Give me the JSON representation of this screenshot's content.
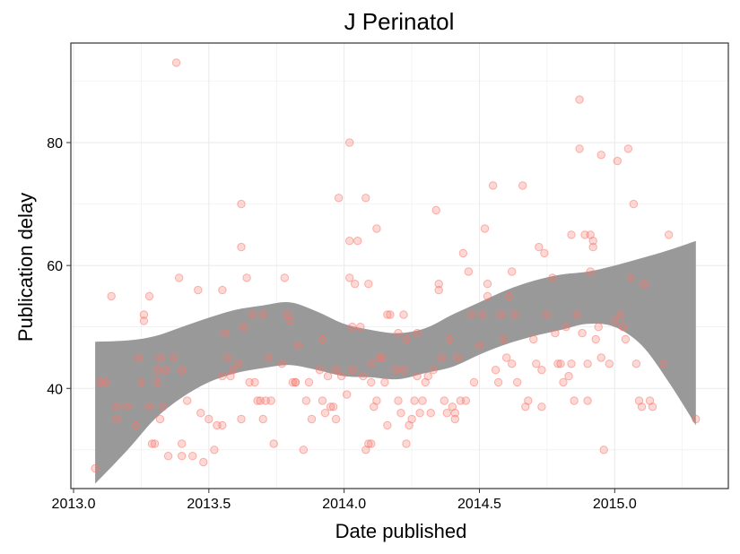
{
  "chart_data": {
    "type": "scatter",
    "title": "J Perinatol",
    "xlabel": "Date published",
    "ylabel": "Publication delay",
    "xlim": [
      2012.99,
      2015.42
    ],
    "ylim": [
      23.7,
      96.2
    ],
    "xticks": [
      2013.0,
      2013.5,
      2014.0,
      2014.5,
      2015.0
    ],
    "xtick_labels": [
      "2013.0",
      "2013.5",
      "2014.0",
      "2014.5",
      "2015.0"
    ],
    "yticks": [
      40,
      60,
      80
    ],
    "ytick_labels": [
      "40",
      "60",
      "80"
    ],
    "grid": true,
    "legend": "none",
    "point_color": "#f8766d",
    "band_color": "#999999",
    "points": [
      [
        2013.08,
        27
      ],
      [
        2013.1,
        41
      ],
      [
        2013.12,
        41
      ],
      [
        2013.14,
        55
      ],
      [
        2013.16,
        37
      ],
      [
        2013.16,
        35
      ],
      [
        2013.2,
        37
      ],
      [
        2013.23,
        34
      ],
      [
        2013.24,
        45
      ],
      [
        2013.25,
        41
      ],
      [
        2013.26,
        52
      ],
      [
        2013.26,
        51
      ],
      [
        2013.28,
        55
      ],
      [
        2013.28,
        37
      ],
      [
        2013.29,
        31
      ],
      [
        2013.3,
        31
      ],
      [
        2013.31,
        43
      ],
      [
        2013.31,
        41
      ],
      [
        2013.32,
        45
      ],
      [
        2013.32,
        35
      ],
      [
        2013.33,
        37
      ],
      [
        2013.34,
        43
      ],
      [
        2013.35,
        29
      ],
      [
        2013.37,
        45
      ],
      [
        2013.38,
        93
      ],
      [
        2013.39,
        58
      ],
      [
        2013.4,
        31
      ],
      [
        2013.4,
        29
      ],
      [
        2013.4,
        43
      ],
      [
        2013.42,
        38
      ],
      [
        2013.44,
        29
      ],
      [
        2013.46,
        56
      ],
      [
        2013.47,
        36
      ],
      [
        2013.48,
        28
      ],
      [
        2013.5,
        35
      ],
      [
        2013.52,
        30
      ],
      [
        2013.53,
        34
      ],
      [
        2013.55,
        34
      ],
      [
        2013.55,
        56
      ],
      [
        2013.55,
        42
      ],
      [
        2013.56,
        49
      ],
      [
        2013.57,
        45
      ],
      [
        2013.58,
        42
      ],
      [
        2013.59,
        43
      ],
      [
        2013.61,
        44
      ],
      [
        2013.62,
        70
      ],
      [
        2013.62,
        63
      ],
      [
        2013.62,
        35
      ],
      [
        2013.63,
        50
      ],
      [
        2013.64,
        58
      ],
      [
        2013.65,
        41
      ],
      [
        2013.66,
        52
      ],
      [
        2013.67,
        41
      ],
      [
        2013.68,
        38
      ],
      [
        2013.69,
        38
      ],
      [
        2013.7,
        52
      ],
      [
        2013.7,
        35
      ],
      [
        2013.71,
        38
      ],
      [
        2013.72,
        45
      ],
      [
        2013.73,
        38
      ],
      [
        2013.74,
        31
      ],
      [
        2013.77,
        44
      ],
      [
        2013.78,
        58
      ],
      [
        2013.79,
        52
      ],
      [
        2013.8,
        51
      ],
      [
        2013.81,
        41
      ],
      [
        2013.82,
        41
      ],
      [
        2013.82,
        41
      ],
      [
        2013.83,
        47
      ],
      [
        2013.85,
        30
      ],
      [
        2013.86,
        38
      ],
      [
        2013.87,
        41
      ],
      [
        2013.88,
        35
      ],
      [
        2013.91,
        43
      ],
      [
        2013.92,
        48
      ],
      [
        2013.92,
        38
      ],
      [
        2013.93,
        36
      ],
      [
        2013.94,
        42
      ],
      [
        2013.95,
        37
      ],
      [
        2013.96,
        37
      ],
      [
        2013.97,
        43
      ],
      [
        2013.97,
        35
      ],
      [
        2013.98,
        71
      ],
      [
        2013.99,
        42
      ],
      [
        2014.01,
        39
      ],
      [
        2014.02,
        64
      ],
      [
        2014.02,
        58
      ],
      [
        2014.02,
        80
      ],
      [
        2014.03,
        50
      ],
      [
        2014.03,
        43
      ],
      [
        2014.04,
        57
      ],
      [
        2014.05,
        64
      ],
      [
        2014.06,
        50
      ],
      [
        2014.07,
        42
      ],
      [
        2014.08,
        71
      ],
      [
        2014.08,
        30
      ],
      [
        2014.09,
        57
      ],
      [
        2014.09,
        31
      ],
      [
        2014.1,
        31
      ],
      [
        2014.1,
        44
      ],
      [
        2014.1,
        41
      ],
      [
        2014.11,
        37
      ],
      [
        2014.12,
        66
      ],
      [
        2014.12,
        38
      ],
      [
        2014.13,
        45
      ],
      [
        2014.14,
        45
      ],
      [
        2014.15,
        41
      ],
      [
        2014.16,
        34
      ],
      [
        2014.16,
        52
      ],
      [
        2014.17,
        52
      ],
      [
        2014.19,
        43
      ],
      [
        2014.2,
        38
      ],
      [
        2014.2,
        49
      ],
      [
        2014.21,
        36
      ],
      [
        2014.22,
        52
      ],
      [
        2014.22,
        43
      ],
      [
        2014.23,
        48
      ],
      [
        2014.23,
        31
      ],
      [
        2014.24,
        34
      ],
      [
        2014.25,
        35
      ],
      [
        2014.26,
        38
      ],
      [
        2014.27,
        49
      ],
      [
        2014.27,
        42
      ],
      [
        2014.28,
        36
      ],
      [
        2014.29,
        38
      ],
      [
        2014.3,
        41
      ],
      [
        2014.31,
        42
      ],
      [
        2014.32,
        36
      ],
      [
        2014.33,
        43
      ],
      [
        2014.34,
        69
      ],
      [
        2014.35,
        56
      ],
      [
        2014.35,
        57
      ],
      [
        2014.36,
        45
      ],
      [
        2014.37,
        38
      ],
      [
        2014.38,
        36
      ],
      [
        2014.39,
        48
      ],
      [
        2014.4,
        37
      ],
      [
        2014.41,
        36
      ],
      [
        2014.41,
        35
      ],
      [
        2014.42,
        45
      ],
      [
        2014.43,
        38
      ],
      [
        2014.44,
        62
      ],
      [
        2014.45,
        38
      ],
      [
        2014.46,
        59
      ],
      [
        2014.47,
        52
      ],
      [
        2014.48,
        41
      ],
      [
        2014.5,
        47
      ],
      [
        2014.51,
        52
      ],
      [
        2014.52,
        66
      ],
      [
        2014.53,
        57
      ],
      [
        2014.53,
        55
      ],
      [
        2014.55,
        73
      ],
      [
        2014.56,
        43
      ],
      [
        2014.57,
        41
      ],
      [
        2014.58,
        52
      ],
      [
        2014.59,
        48
      ],
      [
        2014.6,
        45
      ],
      [
        2014.61,
        55
      ],
      [
        2014.62,
        44
      ],
      [
        2014.62,
        59
      ],
      [
        2014.63,
        52
      ],
      [
        2014.64,
        41
      ],
      [
        2014.66,
        73
      ],
      [
        2014.67,
        37
      ],
      [
        2014.68,
        38
      ],
      [
        2014.7,
        48
      ],
      [
        2014.71,
        44
      ],
      [
        2014.72,
        63
      ],
      [
        2014.73,
        43
      ],
      [
        2014.73,
        37
      ],
      [
        2014.74,
        62
      ],
      [
        2014.75,
        52
      ],
      [
        2014.77,
        58
      ],
      [
        2014.78,
        49
      ],
      [
        2014.79,
        44
      ],
      [
        2014.8,
        44
      ],
      [
        2014.81,
        41
      ],
      [
        2014.82,
        50
      ],
      [
        2014.83,
        42
      ],
      [
        2014.84,
        65
      ],
      [
        2014.84,
        44
      ],
      [
        2014.85,
        38
      ],
      [
        2014.86,
        52
      ],
      [
        2014.87,
        87
      ],
      [
        2014.87,
        79
      ],
      [
        2014.88,
        49
      ],
      [
        2014.89,
        65
      ],
      [
        2014.9,
        38
      ],
      [
        2014.9,
        44
      ],
      [
        2014.91,
        65
      ],
      [
        2014.91,
        59
      ],
      [
        2014.92,
        64
      ],
      [
        2014.92,
        63
      ],
      [
        2014.93,
        48
      ],
      [
        2014.94,
        50
      ],
      [
        2014.95,
        78
      ],
      [
        2014.95,
        45
      ],
      [
        2014.96,
        30
      ],
      [
        2014.98,
        44
      ],
      [
        2015.0,
        51
      ],
      [
        2015.01,
        77
      ],
      [
        2015.02,
        52
      ],
      [
        2015.03,
        50
      ],
      [
        2015.04,
        48
      ],
      [
        2015.05,
        79
      ],
      [
        2015.06,
        58
      ],
      [
        2015.07,
        70
      ],
      [
        2015.08,
        44
      ],
      [
        2015.09,
        38
      ],
      [
        2015.1,
        37
      ],
      [
        2015.11,
        57
      ],
      [
        2015.13,
        38
      ],
      [
        2015.14,
        37
      ],
      [
        2015.18,
        44
      ],
      [
        2015.2,
        65
      ],
      [
        2015.3,
        35
      ]
    ],
    "smooth_band": {
      "x": [
        2013.08,
        2013.2,
        2013.3,
        2013.4,
        2013.5,
        2013.6,
        2013.7,
        2013.8,
        2013.9,
        2014.0,
        2014.1,
        2014.2,
        2014.3,
        2014.4,
        2014.5,
        2014.6,
        2014.7,
        2014.8,
        2014.9,
        2015.0,
        2015.1,
        2015.2,
        2015.3
      ],
      "upper": [
        47.6,
        47.8,
        48.5,
        50.0,
        51.5,
        52.8,
        53.5,
        54.0,
        52.5,
        50.5,
        49.5,
        49.0,
        49.8,
        52.0,
        54.0,
        56.0,
        57.5,
        58.5,
        59.0,
        60.0,
        61.2,
        62.5,
        64.0
      ],
      "lower": [
        24.5,
        30.0,
        35.0,
        38.5,
        41.0,
        42.5,
        43.3,
        43.8,
        43.0,
        42.0,
        41.8,
        41.5,
        42.5,
        43.5,
        45.5,
        47.2,
        48.5,
        49.5,
        50.5,
        50.0,
        47.0,
        41.0,
        34.0
      ]
    }
  }
}
